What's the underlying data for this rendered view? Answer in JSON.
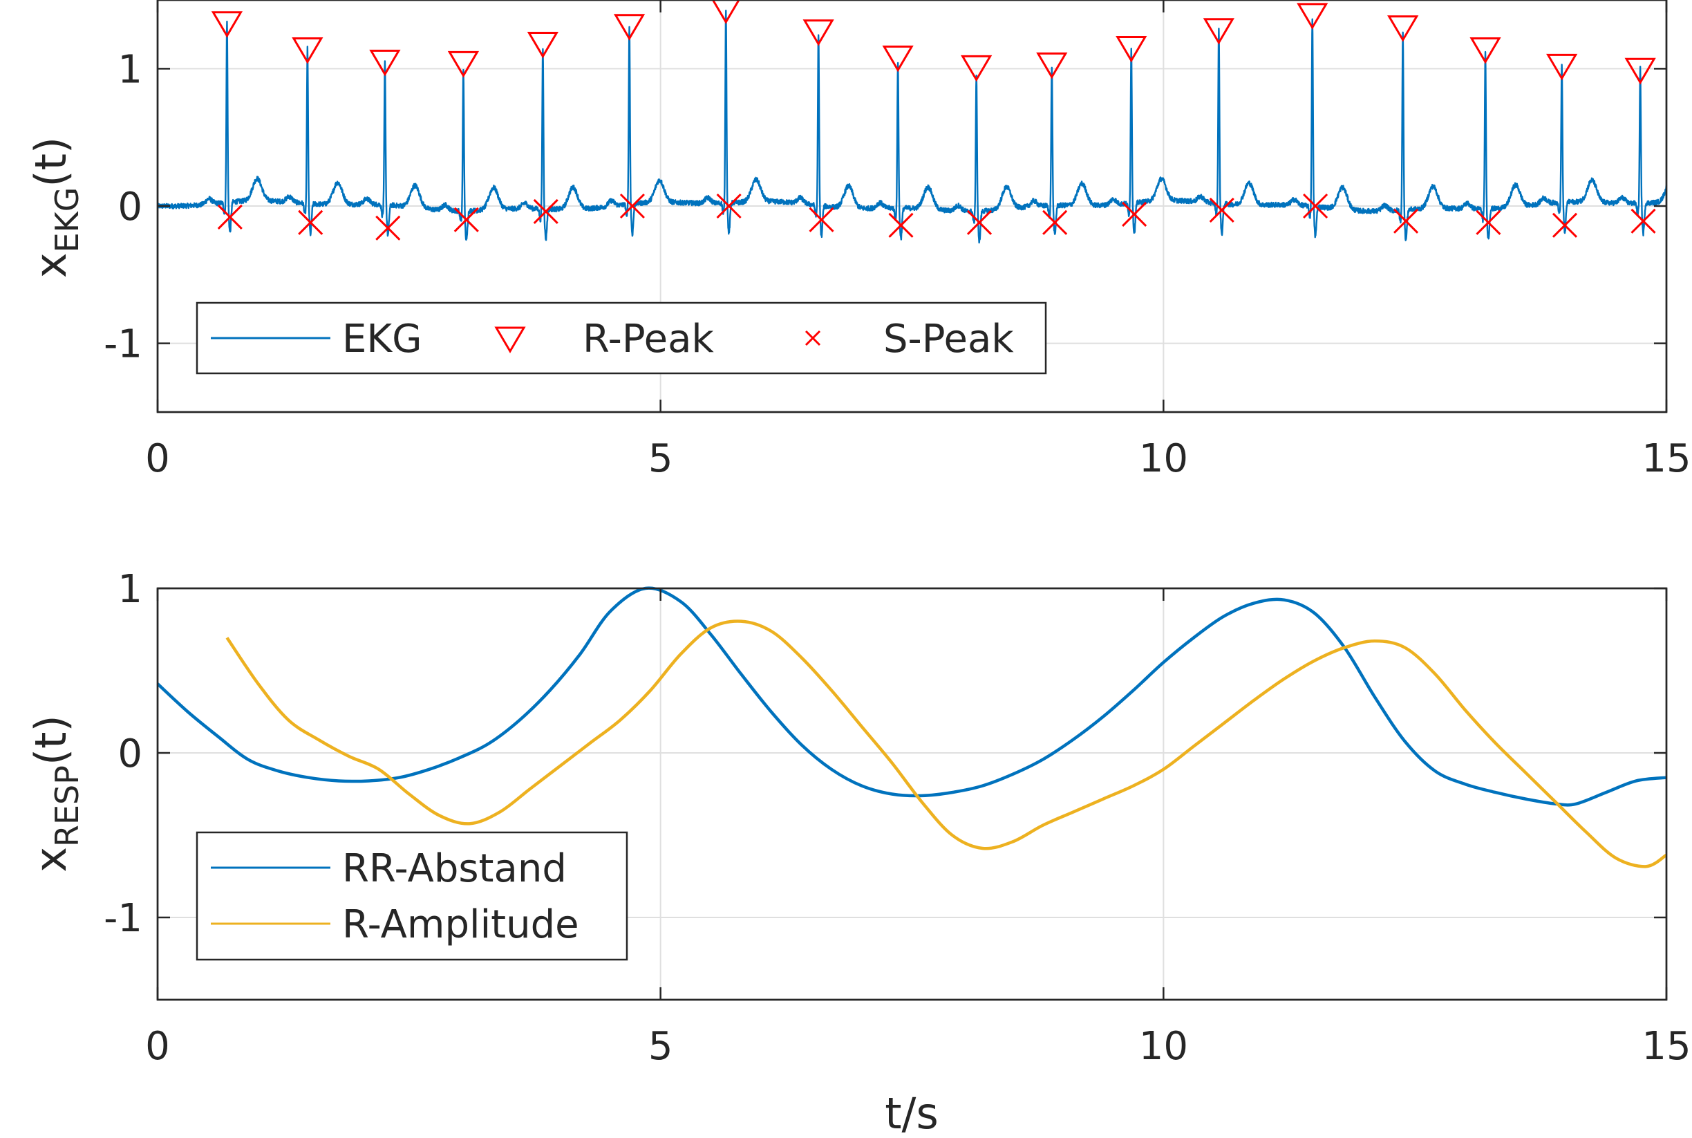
{
  "chart_data": [
    {
      "type": "line",
      "panel": "top",
      "ylabel": "x",
      "ylabel_sub": "EKG",
      "ylabel_suffix": "(t)",
      "xlabel": "",
      "xlim": [
        0,
        15
      ],
      "ylim": [
        -1.5,
        1.5
      ],
      "xticks": [
        "0",
        "5",
        "10",
        "15"
      ],
      "yticks": [
        "-1",
        "0",
        "1"
      ],
      "grid": true,
      "legend": {
        "placement": "bottom-left",
        "orientation": "horizontal",
        "entries": [
          "EKG",
          "R-Peak",
          "S-Peak"
        ]
      },
      "series": [
        {
          "name": "EKG",
          "kind": "ekg-signal",
          "color": "#0072BD",
          "beat_times": [
            0.69,
            1.49,
            2.26,
            3.04,
            3.83,
            4.69,
            5.65,
            6.57,
            7.36,
            8.14,
            8.89,
            9.68,
            10.55,
            11.48,
            12.38,
            13.2,
            13.96,
            14.74
          ],
          "r_amplitudes": [
            1.32,
            1.13,
            1.04,
            1.03,
            1.17,
            1.3,
            1.42,
            1.26,
            1.07,
            1.0,
            1.02,
            1.14,
            1.27,
            1.38,
            1.29,
            1.13,
            1.01,
            0.98
          ]
        },
        {
          "name": "R-Peak",
          "marker": "triangle-down",
          "color": "#FF0000",
          "x": [
            0.69,
            1.49,
            2.26,
            3.04,
            3.83,
            4.69,
            5.65,
            6.57,
            7.36,
            8.14,
            8.89,
            9.68,
            10.55,
            11.48,
            12.38,
            13.2,
            13.96,
            14.74
          ],
          "y": [
            1.32,
            1.13,
            1.04,
            1.03,
            1.17,
            1.3,
            1.42,
            1.26,
            1.07,
            1.0,
            1.02,
            1.14,
            1.27,
            1.38,
            1.29,
            1.13,
            1.01,
            0.98
          ]
        },
        {
          "name": "S-Peak",
          "marker": "x",
          "color": "#FF0000",
          "x": [
            0.72,
            1.52,
            2.29,
            3.07,
            3.86,
            4.72,
            5.68,
            6.6,
            7.39,
            8.17,
            8.92,
            9.71,
            10.58,
            11.51,
            12.41,
            13.23,
            13.99,
            14.77
          ],
          "y": [
            -0.08,
            -0.12,
            -0.16,
            -0.1,
            -0.04,
            0.0,
            0.0,
            -0.1,
            -0.14,
            -0.12,
            -0.12,
            -0.06,
            -0.03,
            0.0,
            -0.11,
            -0.12,
            -0.14,
            -0.11
          ]
        }
      ]
    },
    {
      "type": "line",
      "panel": "bottom",
      "ylabel": "x",
      "ylabel_sub": "RESP",
      "ylabel_suffix": "(t)",
      "xlabel": "t/s",
      "xlim": [
        0,
        15
      ],
      "ylim": [
        -1.5,
        1.0
      ],
      "xticks": [
        "0",
        "5",
        "10",
        "15"
      ],
      "yticks": [
        "-1",
        "0",
        "1"
      ],
      "grid": true,
      "legend": {
        "placement": "bottom-left",
        "orientation": "vertical",
        "entries": [
          "RR-Abstand",
          "R-Amplitude"
        ]
      },
      "series": [
        {
          "name": "RR-Abstand",
          "color": "#0072BD",
          "x": [
            0,
            0.3,
            0.6,
            0.9,
            1.2,
            1.5,
            1.8,
            2.1,
            2.4,
            2.7,
            3.0,
            3.3,
            3.6,
            3.9,
            4.2,
            4.5,
            4.85,
            5.2,
            5.5,
            5.8,
            6.1,
            6.4,
            6.7,
            7.0,
            7.3,
            7.6,
            7.9,
            8.2,
            8.5,
            8.8,
            9.1,
            9.4,
            9.7,
            10.0,
            10.3,
            10.6,
            10.9,
            11.2,
            11.5,
            11.8,
            12.1,
            12.4,
            12.7,
            13.0,
            13.3,
            13.6,
            13.9,
            14.1,
            14.4,
            14.7,
            15.0
          ],
          "y": [
            0.42,
            0.25,
            0.1,
            -0.04,
            -0.11,
            -0.15,
            -0.17,
            -0.17,
            -0.15,
            -0.1,
            -0.03,
            0.06,
            0.2,
            0.38,
            0.6,
            0.86,
            1.0,
            0.92,
            0.72,
            0.48,
            0.25,
            0.05,
            -0.1,
            -0.2,
            -0.25,
            -0.26,
            -0.24,
            -0.2,
            -0.13,
            -0.04,
            0.08,
            0.22,
            0.38,
            0.55,
            0.7,
            0.83,
            0.91,
            0.93,
            0.85,
            0.64,
            0.34,
            0.07,
            -0.11,
            -0.19,
            -0.24,
            -0.28,
            -0.31,
            -0.31,
            -0.24,
            -0.17,
            -0.15
          ]
        },
        {
          "name": "R-Amplitude",
          "color": "#EDB120",
          "x": [
            0.69,
            1.0,
            1.3,
            1.6,
            1.9,
            2.2,
            2.5,
            2.8,
            3.1,
            3.4,
            3.7,
            4.0,
            4.3,
            4.6,
            4.9,
            5.2,
            5.5,
            5.8,
            6.1,
            6.4,
            6.7,
            7.0,
            7.3,
            7.6,
            7.9,
            8.2,
            8.5,
            8.8,
            9.1,
            9.4,
            9.7,
            10.0,
            10.3,
            10.6,
            10.9,
            11.2,
            11.5,
            11.8,
            12.1,
            12.4,
            12.7,
            13.0,
            13.3,
            13.6,
            13.9,
            14.2,
            14.5,
            14.8,
            15.0
          ],
          "y": [
            0.7,
            0.42,
            0.2,
            0.08,
            -0.02,
            -0.1,
            -0.25,
            -0.38,
            -0.43,
            -0.36,
            -0.22,
            -0.08,
            0.06,
            0.2,
            0.38,
            0.6,
            0.76,
            0.8,
            0.74,
            0.58,
            0.38,
            0.16,
            -0.06,
            -0.3,
            -0.5,
            -0.58,
            -0.54,
            -0.44,
            -0.36,
            -0.28,
            -0.2,
            -0.1,
            0.04,
            0.18,
            0.32,
            0.45,
            0.56,
            0.64,
            0.68,
            0.64,
            0.48,
            0.26,
            0.06,
            -0.12,
            -0.3,
            -0.48,
            -0.64,
            -0.69,
            -0.62
          ]
        }
      ]
    }
  ]
}
